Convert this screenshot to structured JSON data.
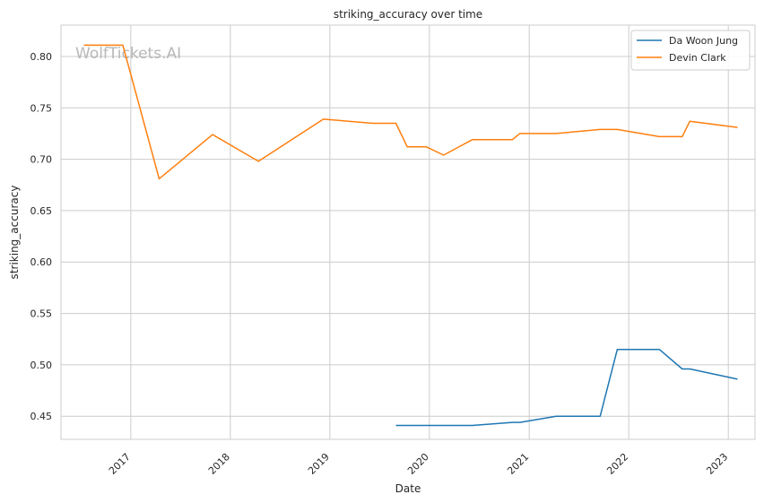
{
  "chart_data": {
    "type": "line",
    "title": "striking_accuracy over time",
    "xlabel": "Date",
    "ylabel": "striking_accuracy",
    "watermark": "WolfTickets.AI",
    "x_range": [
      "2016-04-20",
      "2023-04-09"
    ],
    "ylim": [
      0.4275,
      0.8305
    ],
    "x_ticks": [
      {
        "label": "2017",
        "date": "2017-01-01"
      },
      {
        "label": "2018",
        "date": "2018-01-01"
      },
      {
        "label": "2019",
        "date": "2019-01-01"
      },
      {
        "label": "2020",
        "date": "2020-01-01"
      },
      {
        "label": "2021",
        "date": "2021-01-01"
      },
      {
        "label": "2022",
        "date": "2022-01-01"
      },
      {
        "label": "2023",
        "date": "2023-01-01"
      }
    ],
    "y_ticks": [
      {
        "label": "0.45",
        "value": 0.45
      },
      {
        "label": "0.50",
        "value": 0.5
      },
      {
        "label": "0.55",
        "value": 0.55
      },
      {
        "label": "0.60",
        "value": 0.6
      },
      {
        "label": "0.65",
        "value": 0.65
      },
      {
        "label": "0.70",
        "value": 0.7
      },
      {
        "label": "0.75",
        "value": 0.75
      },
      {
        "label": "0.80",
        "value": 0.8
      }
    ],
    "grid": true,
    "legend_position": "top-right",
    "series": [
      {
        "name": "Da Woon Jung",
        "color": "#1f77b4",
        "points": [
          {
            "x": "2019-08-31",
            "y": 0.441
          },
          {
            "x": "2020-06-06",
            "y": 0.441
          },
          {
            "x": "2020-10-31",
            "y": 0.444
          },
          {
            "x": "2020-11-28",
            "y": 0.444
          },
          {
            "x": "2021-04-10",
            "y": 0.45
          },
          {
            "x": "2021-09-18",
            "y": 0.45
          },
          {
            "x": "2021-11-20",
            "y": 0.515
          },
          {
            "x": "2022-04-23",
            "y": 0.515
          },
          {
            "x": "2022-07-16",
            "y": 0.496
          },
          {
            "x": "2022-08-13",
            "y": 0.496
          },
          {
            "x": "2023-02-04",
            "y": 0.486
          }
        ]
      },
      {
        "name": "Devin Clark",
        "color": "#ff7f0e",
        "points": [
          {
            "x": "2016-07-13",
            "y": 0.811
          },
          {
            "x": "2016-12-03",
            "y": 0.811
          },
          {
            "x": "2017-04-15",
            "y": 0.681
          },
          {
            "x": "2017-10-28",
            "y": 0.724
          },
          {
            "x": "2018-04-14",
            "y": 0.698
          },
          {
            "x": "2018-12-08",
            "y": 0.739
          },
          {
            "x": "2019-06-08",
            "y": 0.735
          },
          {
            "x": "2019-08-31",
            "y": 0.735
          },
          {
            "x": "2019-10-12",
            "y": 0.712
          },
          {
            "x": "2019-12-21",
            "y": 0.712
          },
          {
            "x": "2020-02-22",
            "y": 0.704
          },
          {
            "x": "2020-06-06",
            "y": 0.719
          },
          {
            "x": "2020-10-31",
            "y": 0.719
          },
          {
            "x": "2020-11-28",
            "y": 0.725
          },
          {
            "x": "2021-04-10",
            "y": 0.725
          },
          {
            "x": "2021-09-18",
            "y": 0.729
          },
          {
            "x": "2021-11-20",
            "y": 0.729
          },
          {
            "x": "2022-04-23",
            "y": 0.722
          },
          {
            "x": "2022-07-16",
            "y": 0.722
          },
          {
            "x": "2022-08-13",
            "y": 0.737
          },
          {
            "x": "2023-02-04",
            "y": 0.731
          }
        ]
      }
    ]
  }
}
